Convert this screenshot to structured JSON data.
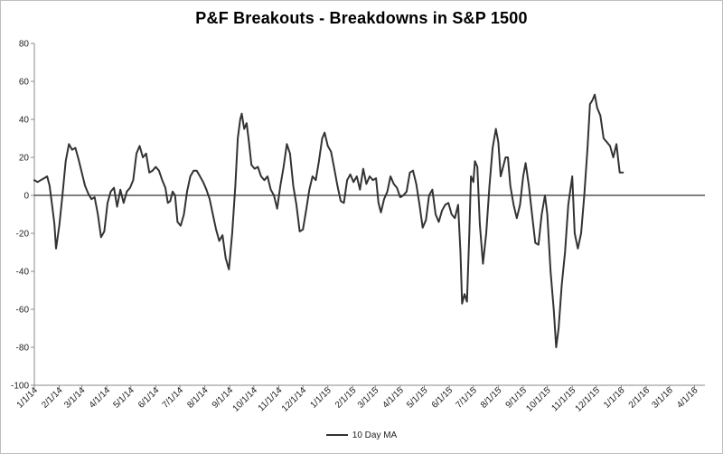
{
  "chart_data": {
    "type": "line",
    "title": "P&F Breakouts - Breakdowns in S&P 1500",
    "xlabel": "",
    "ylabel": "",
    "ylim": [
      -100,
      80
    ],
    "yticks": [
      "80",
      "60",
      "40",
      "20",
      "0",
      "-20",
      "-40",
      "-60",
      "-80",
      "-100"
    ],
    "xticks": [
      "1/1/14",
      "2/1/14",
      "3/1/14",
      "4/1/14",
      "5/1/14",
      "6/1/14",
      "7/1/14",
      "8/1/14",
      "9/1/14",
      "10/1/14",
      "11/1/14",
      "12/1/14",
      "1/1/15",
      "2/1/15",
      "3/1/15",
      "4/1/15",
      "5/1/15",
      "6/1/15",
      "7/1/15",
      "8/1/15",
      "9/1/15",
      "10/1/15",
      "11/1/15",
      "12/1/15",
      "1/1/16",
      "2/1/16",
      "3/1/16",
      "4/1/16"
    ],
    "grid": false,
    "legend_position": "bottom",
    "series": [
      {
        "name": "10 Day MA",
        "color": "#333333",
        "points": [
          [
            "2014-01-01",
            8
          ],
          [
            "2014-01-05",
            7
          ],
          [
            "2014-01-09",
            8
          ],
          [
            "2014-01-13",
            9
          ],
          [
            "2014-01-17",
            10
          ],
          [
            "2014-01-20",
            5
          ],
          [
            "2014-01-23",
            -5
          ],
          [
            "2014-01-26",
            -15
          ],
          [
            "2014-01-28",
            -28
          ],
          [
            "2014-02-01",
            -16
          ],
          [
            "2014-02-05",
            0
          ],
          [
            "2014-02-09",
            18
          ],
          [
            "2014-02-13",
            27
          ],
          [
            "2014-02-17",
            24
          ],
          [
            "2014-02-21",
            25
          ],
          [
            "2014-02-25",
            19
          ],
          [
            "2014-03-01",
            12
          ],
          [
            "2014-03-05",
            5
          ],
          [
            "2014-03-09",
            1
          ],
          [
            "2014-03-13",
            -2
          ],
          [
            "2014-03-17",
            -1
          ],
          [
            "2014-03-21",
            -10
          ],
          [
            "2014-03-25",
            -22
          ],
          [
            "2014-03-29",
            -19
          ],
          [
            "2014-04-02",
            -4
          ],
          [
            "2014-04-06",
            2
          ],
          [
            "2014-04-10",
            4
          ],
          [
            "2014-04-14",
            -6
          ],
          [
            "2014-04-18",
            3
          ],
          [
            "2014-04-22",
            -4
          ],
          [
            "2014-04-26",
            2
          ],
          [
            "2014-04-30",
            4
          ],
          [
            "2014-05-04",
            8
          ],
          [
            "2014-05-08",
            22
          ],
          [
            "2014-05-12",
            26
          ],
          [
            "2014-05-16",
            20
          ],
          [
            "2014-05-20",
            22
          ],
          [
            "2014-05-24",
            12
          ],
          [
            "2014-05-28",
            13
          ],
          [
            "2014-06-01",
            15
          ],
          [
            "2014-06-05",
            13
          ],
          [
            "2014-06-09",
            8
          ],
          [
            "2014-06-13",
            4
          ],
          [
            "2014-06-16",
            -4
          ],
          [
            "2014-06-19",
            -3
          ],
          [
            "2014-06-22",
            2
          ],
          [
            "2014-06-25",
            0
          ],
          [
            "2014-06-28",
            -14
          ],
          [
            "2014-07-02",
            -16
          ],
          [
            "2014-07-06",
            -10
          ],
          [
            "2014-07-10",
            2
          ],
          [
            "2014-07-14",
            10
          ],
          [
            "2014-07-18",
            13
          ],
          [
            "2014-07-22",
            13
          ],
          [
            "2014-07-26",
            10
          ],
          [
            "2014-07-30",
            7
          ],
          [
            "2014-08-03",
            3
          ],
          [
            "2014-08-07",
            -2
          ],
          [
            "2014-08-11",
            -10
          ],
          [
            "2014-08-15",
            -18
          ],
          [
            "2014-08-19",
            -24
          ],
          [
            "2014-08-23",
            -21
          ],
          [
            "2014-08-27",
            -33
          ],
          [
            "2014-08-31",
            -39
          ],
          [
            "2014-09-04",
            -20
          ],
          [
            "2014-09-08",
            5
          ],
          [
            "2014-09-11",
            30
          ],
          [
            "2014-09-14",
            40
          ],
          [
            "2014-09-16",
            43
          ],
          [
            "2014-09-19",
            35
          ],
          [
            "2014-09-22",
            38
          ],
          [
            "2014-09-25",
            28
          ],
          [
            "2014-09-28",
            16
          ],
          [
            "2014-10-02",
            14
          ],
          [
            "2014-10-06",
            15
          ],
          [
            "2014-10-10",
            10
          ],
          [
            "2014-10-14",
            8
          ],
          [
            "2014-10-18",
            10
          ],
          [
            "2014-10-22",
            3
          ],
          [
            "2014-10-26",
            0
          ],
          [
            "2014-10-30",
            -7
          ],
          [
            "2014-11-03",
            5
          ],
          [
            "2014-11-07",
            15
          ],
          [
            "2014-11-11",
            27
          ],
          [
            "2014-11-15",
            22
          ],
          [
            "2014-11-19",
            5
          ],
          [
            "2014-11-23",
            -5
          ],
          [
            "2014-11-27",
            -19
          ],
          [
            "2014-12-01",
            -18
          ],
          [
            "2014-12-05",
            -8
          ],
          [
            "2014-12-09",
            3
          ],
          [
            "2014-12-13",
            10
          ],
          [
            "2014-12-17",
            8
          ],
          [
            "2014-12-21",
            18
          ],
          [
            "2014-12-25",
            30
          ],
          [
            "2014-12-28",
            33
          ],
          [
            "2015-01-01",
            26
          ],
          [
            "2015-01-05",
            23
          ],
          [
            "2015-01-09",
            14
          ],
          [
            "2015-01-13",
            5
          ],
          [
            "2015-01-17",
            -3
          ],
          [
            "2015-01-21",
            -4
          ],
          [
            "2015-01-25",
            8
          ],
          [
            "2015-01-29",
            11
          ],
          [
            "2015-02-02",
            7
          ],
          [
            "2015-02-06",
            10
          ],
          [
            "2015-02-10",
            3
          ],
          [
            "2015-02-14",
            14
          ],
          [
            "2015-02-18",
            6
          ],
          [
            "2015-02-22",
            10
          ],
          [
            "2015-02-26",
            8
          ],
          [
            "2015-03-02",
            9
          ],
          [
            "2015-03-05",
            -4
          ],
          [
            "2015-03-08",
            -9
          ],
          [
            "2015-03-12",
            -2
          ],
          [
            "2015-03-16",
            2
          ],
          [
            "2015-03-20",
            10
          ],
          [
            "2015-03-24",
            6
          ],
          [
            "2015-03-28",
            4
          ],
          [
            "2015-04-01",
            -1
          ],
          [
            "2015-04-05",
            0
          ],
          [
            "2015-04-09",
            2
          ],
          [
            "2015-04-13",
            12
          ],
          [
            "2015-04-17",
            13
          ],
          [
            "2015-04-21",
            6
          ],
          [
            "2015-04-25",
            -5
          ],
          [
            "2015-04-29",
            -17
          ],
          [
            "2015-05-03",
            -13
          ],
          [
            "2015-05-07",
            0
          ],
          [
            "2015-05-11",
            3
          ],
          [
            "2015-05-15",
            -10
          ],
          [
            "2015-05-19",
            -14
          ],
          [
            "2015-05-23",
            -8
          ],
          [
            "2015-05-27",
            -5
          ],
          [
            "2015-05-31",
            -4
          ],
          [
            "2015-06-04",
            -10
          ],
          [
            "2015-06-08",
            -12
          ],
          [
            "2015-06-12",
            -5
          ],
          [
            "2015-06-15",
            -30
          ],
          [
            "2015-06-17",
            -57
          ],
          [
            "2015-06-20",
            -52
          ],
          [
            "2015-06-23",
            -56
          ],
          [
            "2015-06-26",
            -20
          ],
          [
            "2015-06-28",
            10
          ],
          [
            "2015-07-01",
            7
          ],
          [
            "2015-07-03",
            18
          ],
          [
            "2015-07-06",
            15
          ],
          [
            "2015-07-09",
            -15
          ],
          [
            "2015-07-13",
            -36
          ],
          [
            "2015-07-17",
            -20
          ],
          [
            "2015-07-21",
            5
          ],
          [
            "2015-07-25",
            25
          ],
          [
            "2015-07-29",
            35
          ],
          [
            "2015-08-01",
            28
          ],
          [
            "2015-08-04",
            10
          ],
          [
            "2015-08-07",
            15
          ],
          [
            "2015-08-10",
            20
          ],
          [
            "2015-08-13",
            20
          ],
          [
            "2015-08-16",
            5
          ],
          [
            "2015-08-20",
            -5
          ],
          [
            "2015-08-24",
            -12
          ],
          [
            "2015-08-28",
            -5
          ],
          [
            "2015-09-01",
            10
          ],
          [
            "2015-09-04",
            17
          ],
          [
            "2015-09-08",
            5
          ],
          [
            "2015-09-12",
            -10
          ],
          [
            "2015-09-16",
            -25
          ],
          [
            "2015-09-20",
            -26
          ],
          [
            "2015-09-24",
            -10
          ],
          [
            "2015-09-28",
            0
          ],
          [
            "2015-10-01",
            -10
          ],
          [
            "2015-10-05",
            -40
          ],
          [
            "2015-10-09",
            -60
          ],
          [
            "2015-10-12",
            -80
          ],
          [
            "2015-10-15",
            -70
          ],
          [
            "2015-10-19",
            -47
          ],
          [
            "2015-10-23",
            -30
          ],
          [
            "2015-10-27",
            -5
          ],
          [
            "2015-11-01",
            10
          ],
          [
            "2015-11-04",
            -20
          ],
          [
            "2015-11-08",
            -28
          ],
          [
            "2015-11-12",
            -20
          ],
          [
            "2015-11-16",
            0
          ],
          [
            "2015-11-20",
            25
          ],
          [
            "2015-11-23",
            48
          ],
          [
            "2015-11-26",
            50
          ],
          [
            "2015-11-29",
            53
          ],
          [
            "2015-12-02",
            46
          ],
          [
            "2015-12-06",
            42
          ],
          [
            "2015-12-10",
            30
          ],
          [
            "2015-12-14",
            28
          ],
          [
            "2015-12-18",
            26
          ],
          [
            "2015-12-22",
            20
          ],
          [
            "2015-12-26",
            27
          ],
          [
            "2015-12-30",
            12
          ],
          [
            "2016-01-03",
            12
          ]
        ]
      }
    ]
  }
}
